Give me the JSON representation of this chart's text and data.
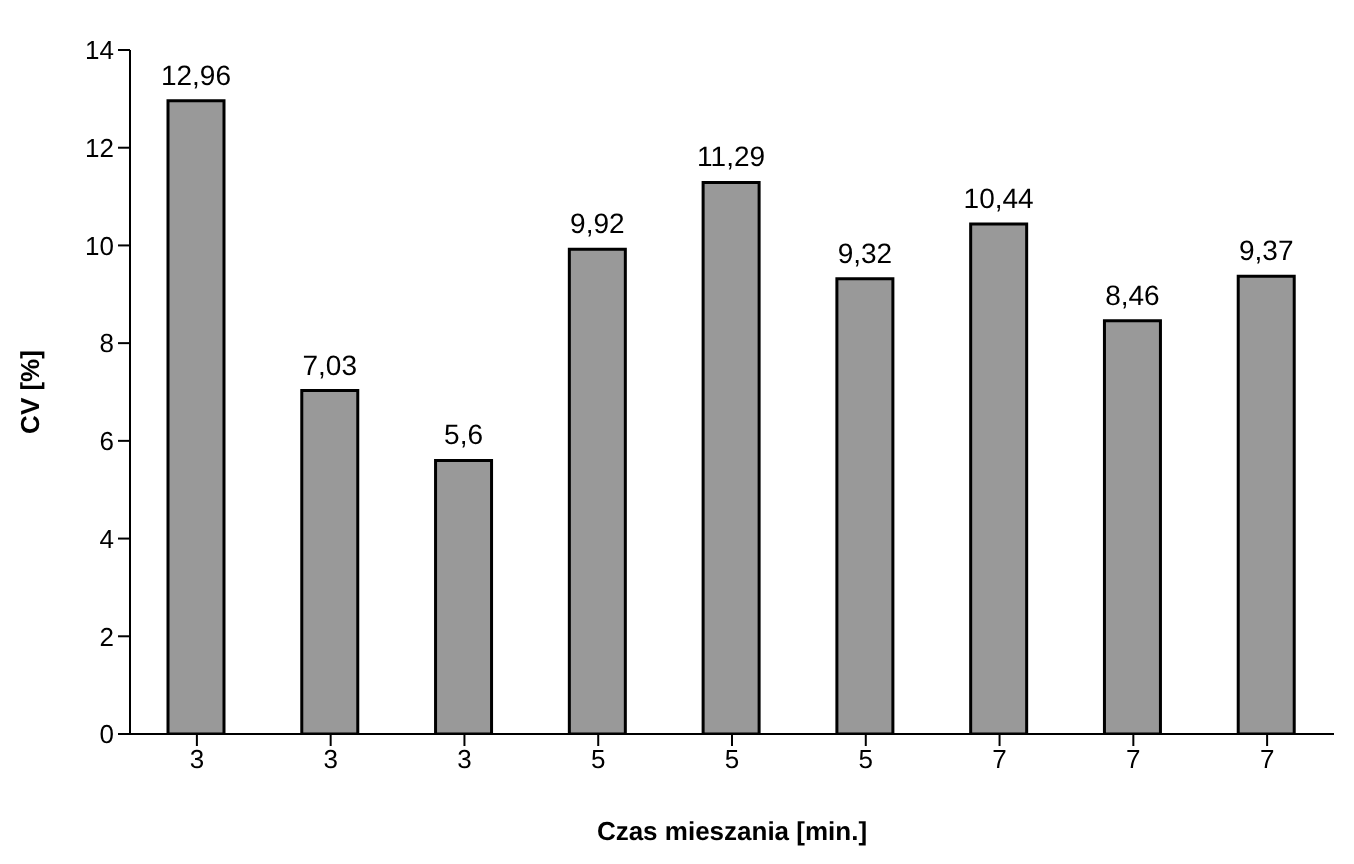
{
  "chart_data": {
    "type": "bar",
    "xlabel": "Czas mieszania [min.]",
    "ylabel": "CV [%]",
    "categories": [
      "3",
      "3",
      "3",
      "5",
      "5",
      "5",
      "7",
      "7",
      "7"
    ],
    "values": [
      12.96,
      7.03,
      5.6,
      9.92,
      11.29,
      9.32,
      10.44,
      8.46,
      9.37
    ],
    "value_labels": [
      "12,96",
      "7,03",
      "5,6",
      "9,92",
      "11,29",
      "9,32",
      "10,44",
      "8,46",
      "9,37"
    ],
    "color": "#999999",
    "ylim": [
      0,
      14
    ],
    "yticks": [
      0,
      2,
      4,
      6,
      8,
      10,
      12,
      14
    ],
    "grid": false,
    "legend": false
  }
}
